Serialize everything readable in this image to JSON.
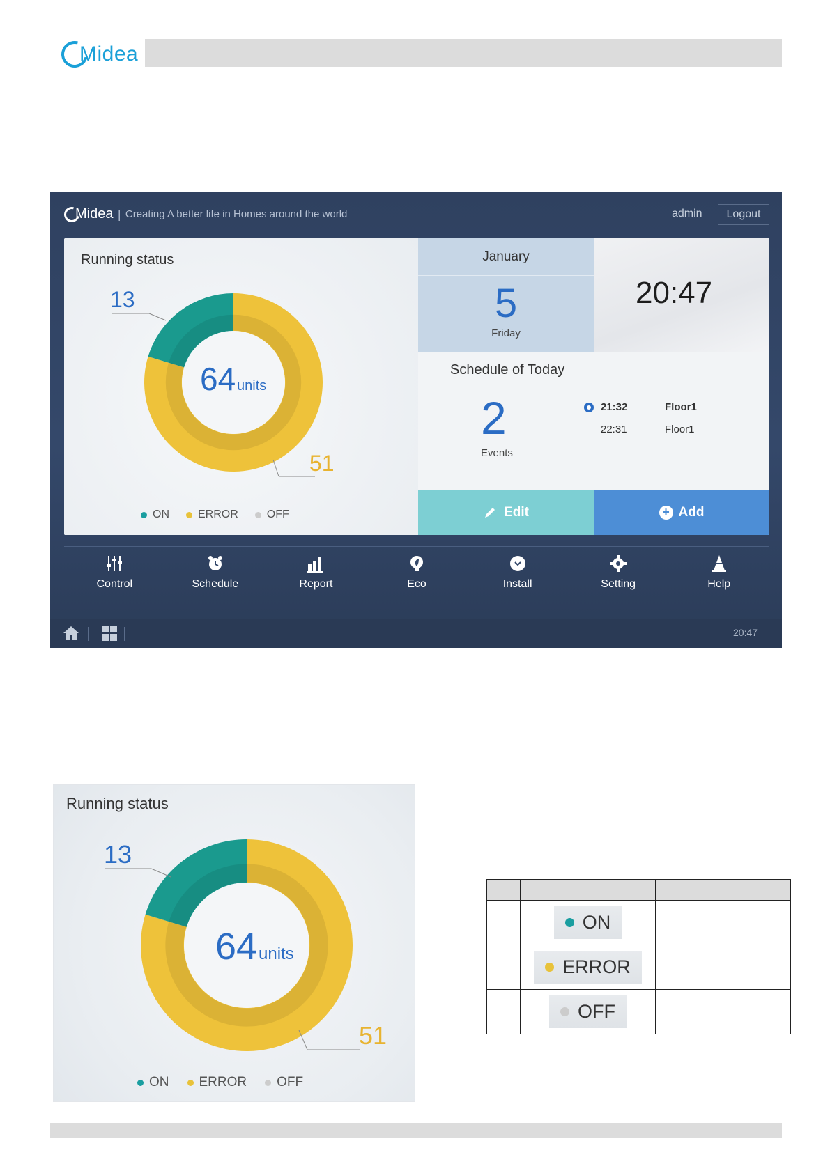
{
  "doc": {
    "logo": "Midea"
  },
  "screen": {
    "brand": "Midea",
    "slogan": "Creating A better life in Homes around the world",
    "user": "admin",
    "logout": "Logout",
    "running_status": {
      "title": "Running status",
      "total": "64",
      "unit": "units",
      "on_label_value": "13",
      "error_label_value": "51",
      "legend": [
        {
          "label": "ON",
          "color": "#1a9ea0"
        },
        {
          "label": "ERROR",
          "color": "#e8c23a"
        },
        {
          "label": "OFF",
          "color": "#cccccc"
        }
      ]
    },
    "date": {
      "month": "January",
      "day": "5",
      "weekday": "Friday"
    },
    "clock": "20:47",
    "schedule": {
      "title": "Schedule of Today",
      "count": "2",
      "count_label": "Events",
      "events": [
        {
          "time": "21:32",
          "place": "Floor1",
          "active": true
        },
        {
          "time": "22:31",
          "place": "Floor1",
          "active": false
        }
      ]
    },
    "buttons": {
      "edit": "Edit",
      "add": "Add"
    },
    "nav": [
      {
        "label": "Control",
        "icon": "sliders-icon"
      },
      {
        "label": "Schedule",
        "icon": "alarm-clock-icon"
      },
      {
        "label": "Report",
        "icon": "bar-chart-icon"
      },
      {
        "label": "Eco",
        "icon": "leaf-bulb-icon"
      },
      {
        "label": "Install",
        "icon": "install-icon"
      },
      {
        "label": "Setting",
        "icon": "gear-icon"
      },
      {
        "label": "Help",
        "icon": "cone-icon"
      }
    ],
    "status_time": "20:47"
  },
  "zoom": {
    "title": "Running status",
    "total": "64",
    "unit": "units",
    "on_value": "13",
    "error_value": "51",
    "legend": [
      "ON",
      "ERROR",
      "OFF"
    ]
  },
  "table": {
    "rows": [
      {
        "label": "ON",
        "color": "#1a9ea0"
      },
      {
        "label": "ERROR",
        "color": "#e8c23a"
      },
      {
        "label": "OFF",
        "color": "#cccccc"
      }
    ]
  },
  "chart_data": {
    "type": "pie",
    "categories": [
      "ON",
      "ERROR",
      "OFF"
    ],
    "values": [
      13,
      51,
      0
    ],
    "center_text": "64units"
  }
}
